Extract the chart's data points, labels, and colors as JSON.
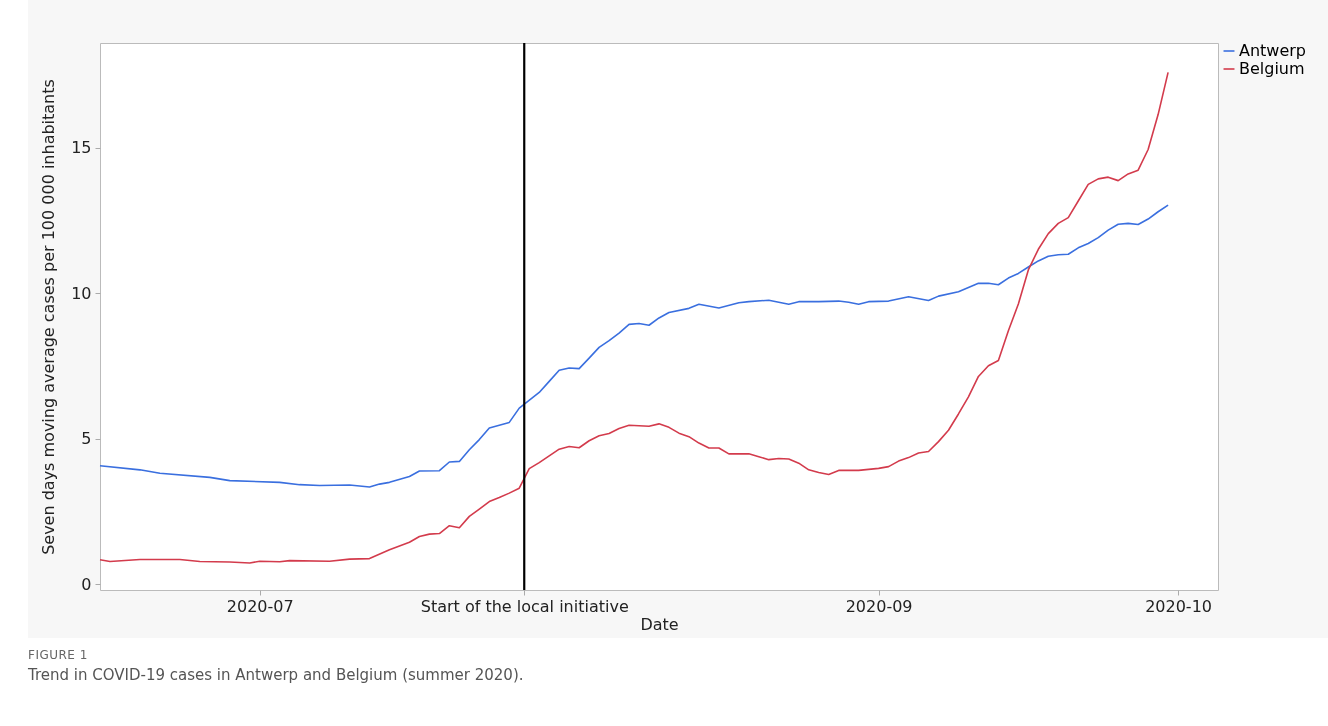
{
  "chart_data": {
    "type": "line",
    "title": "FIGURE 1",
    "subtitle": "Trend in COVID-19 cases in Antwerp and Belgium (summer 2020).",
    "xlabel": "Date",
    "ylabel": "Seven days moving average cases per 100 000 inhabitants",
    "xlim": [
      "2020-06-15",
      "2020-10-05"
    ],
    "ylim": [
      -0.2,
      18.6
    ],
    "yticks": [
      0,
      5,
      10,
      15
    ],
    "xticks": [
      {
        "value": "2020-07",
        "label": "2020-07"
      },
      {
        "value": "2020-07-27T12:00",
        "label": "Start of the local initiative"
      },
      {
        "value": "2020-09",
        "label": "2020-09"
      },
      {
        "value": "2020-10",
        "label": "2020-10"
      }
    ],
    "ref_lines": [
      {
        "axis": "x",
        "value": "2020-07-27T12:00",
        "color": "#000000"
      }
    ],
    "legend": "top right",
    "series": [
      {
        "name": "Antwerp",
        "color": "#3a6fdf",
        "x": [
          "2020-06-15",
          "2020-06-19",
          "2020-06-21",
          "2020-06-26",
          "2020-06-28",
          "2020-07-03",
          "2020-07-05",
          "2020-07-07",
          "2020-07-10",
          "2020-07-12",
          "2020-07-13",
          "2020-07-14",
          "2020-07-16",
          "2020-07-17",
          "2020-07-19",
          "2020-07-20",
          "2020-07-21",
          "2020-07-22",
          "2020-07-23",
          "2020-07-24",
          "2020-07-26",
          "2020-07-27",
          "2020-07-29",
          "2020-07-30",
          "2020-07-31",
          "2020-08-01",
          "2020-08-02",
          "2020-08-03",
          "2020-08-04",
          "2020-08-05",
          "2020-08-06",
          "2020-08-07",
          "2020-08-08",
          "2020-08-09",
          "2020-08-10",
          "2020-08-11",
          "2020-08-13",
          "2020-08-14",
          "2020-08-16",
          "2020-08-18",
          "2020-08-19",
          "2020-08-21",
          "2020-08-22",
          "2020-08-23",
          "2020-08-24",
          "2020-08-26",
          "2020-08-28",
          "2020-08-29",
          "2020-08-30",
          "2020-08-31",
          "2020-09-02",
          "2020-09-04",
          "2020-09-06",
          "2020-09-07",
          "2020-09-09",
          "2020-09-11",
          "2020-09-12",
          "2020-09-13",
          "2020-09-14",
          "2020-09-15",
          "2020-09-16",
          "2020-09-17",
          "2020-09-18",
          "2020-09-19",
          "2020-09-20",
          "2020-09-21",
          "2020-09-22",
          "2020-09-23",
          "2020-09-24",
          "2020-09-25",
          "2020-09-26",
          "2020-09-27",
          "2020-09-28",
          "2020-09-29",
          "2020-09-30"
        ],
        "values": [
          4.07,
          3.93,
          3.81,
          3.67,
          3.56,
          3.5,
          3.42,
          3.39,
          3.41,
          3.34,
          3.44,
          3.5,
          3.7,
          3.89,
          3.9,
          4.2,
          4.22,
          4.62,
          4.97,
          5.37,
          5.56,
          6.05,
          6.59,
          6.97,
          7.35,
          7.43,
          7.41,
          7.77,
          8.14,
          8.37,
          8.63,
          8.93,
          8.96,
          8.9,
          9.15,
          9.34,
          9.48,
          9.62,
          9.49,
          9.67,
          9.71,
          9.76,
          9.69,
          9.62,
          9.71,
          9.71,
          9.73,
          9.69,
          9.62,
          9.71,
          9.73,
          9.88,
          9.75,
          9.9,
          10.05,
          10.34,
          10.34,
          10.29,
          10.52,
          10.68,
          10.9,
          11.11,
          11.27,
          11.32,
          11.34,
          11.56,
          11.71,
          11.91,
          12.17,
          12.37,
          12.4,
          12.36,
          12.55,
          12.8,
          13.03
        ]
      },
      {
        "name": "Belgium",
        "color": "#d33b4c",
        "x": [
          "2020-06-15",
          "2020-06-16",
          "2020-06-19",
          "2020-06-23",
          "2020-06-25",
          "2020-06-28",
          "2020-06-30",
          "2020-07-01",
          "2020-07-03",
          "2020-07-04",
          "2020-07-08",
          "2020-07-10",
          "2020-07-12",
          "2020-07-14",
          "2020-07-16",
          "2020-07-17",
          "2020-07-18",
          "2020-07-19",
          "2020-07-20",
          "2020-07-21",
          "2020-07-22",
          "2020-07-23",
          "2020-07-24",
          "2020-07-25",
          "2020-07-26",
          "2020-07-27",
          "2020-07-28",
          "2020-07-29",
          "2020-07-30",
          "2020-07-31",
          "2020-08-01",
          "2020-08-02",
          "2020-08-03",
          "2020-08-04",
          "2020-08-05",
          "2020-08-06",
          "2020-08-07",
          "2020-08-09",
          "2020-08-10",
          "2020-08-11",
          "2020-08-12",
          "2020-08-13",
          "2020-08-14",
          "2020-08-15",
          "2020-08-16",
          "2020-08-17",
          "2020-08-19",
          "2020-08-20",
          "2020-08-21",
          "2020-08-22",
          "2020-08-23",
          "2020-08-24",
          "2020-08-25",
          "2020-08-26",
          "2020-08-27",
          "2020-08-28",
          "2020-08-30",
          "2020-09-01",
          "2020-09-02",
          "2020-09-03",
          "2020-09-04",
          "2020-09-05",
          "2020-09-06",
          "2020-09-07",
          "2020-09-08",
          "2020-09-09",
          "2020-09-10",
          "2020-09-11",
          "2020-09-12",
          "2020-09-13",
          "2020-09-14",
          "2020-09-15",
          "2020-09-16",
          "2020-09-17",
          "2020-09-18",
          "2020-09-19",
          "2020-09-20",
          "2020-09-21",
          "2020-09-22",
          "2020-09-23",
          "2020-09-24",
          "2020-09-25",
          "2020-09-26",
          "2020-09-27",
          "2020-09-28",
          "2020-09-29",
          "2020-09-30"
        ],
        "values": [
          0.84,
          0.78,
          0.85,
          0.85,
          0.78,
          0.76,
          0.73,
          0.79,
          0.77,
          0.81,
          0.79,
          0.86,
          0.88,
          1.18,
          1.44,
          1.64,
          1.72,
          1.74,
          2.01,
          1.94,
          2.33,
          2.58,
          2.84,
          2.98,
          3.13,
          3.3,
          3.97,
          4.18,
          4.41,
          4.64,
          4.73,
          4.69,
          4.93,
          5.1,
          5.18,
          5.35,
          5.46,
          5.43,
          5.51,
          5.39,
          5.19,
          5.07,
          4.85,
          4.68,
          4.68,
          4.48,
          4.48,
          4.38,
          4.28,
          4.32,
          4.3,
          4.16,
          3.93,
          3.84,
          3.77,
          3.91,
          3.91,
          3.98,
          4.04,
          4.23,
          4.35,
          4.51,
          4.56,
          4.9,
          5.29,
          5.85,
          6.44,
          7.14,
          7.51,
          7.69,
          8.71,
          9.63,
          10.8,
          11.51,
          12.05,
          12.4,
          12.6,
          13.17,
          13.74,
          13.93,
          13.99,
          13.87,
          14.1,
          14.23,
          14.94,
          16.14,
          17.59
        ]
      }
    ]
  }
}
